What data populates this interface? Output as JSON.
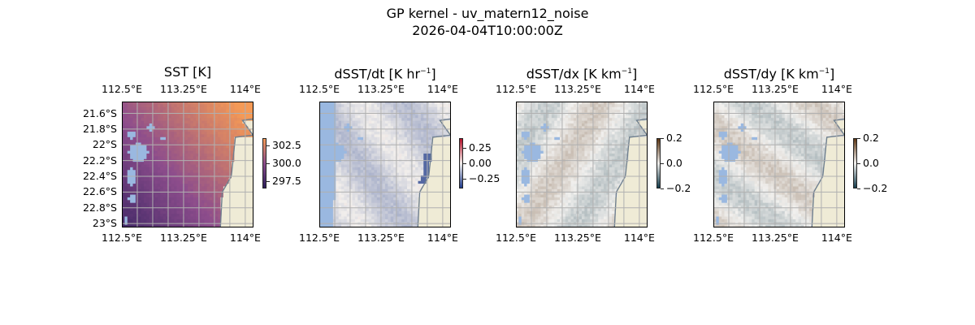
{
  "figure": {
    "title_line1": "GP kernel - uv_matern12_noise",
    "title_line2": "2026-04-04T10:00:00Z"
  },
  "panels": [
    {
      "id": "sst",
      "title_text": "SST [K]",
      "title_unit_exp": "",
      "title_suffix": "",
      "colormap": "thermal",
      "colors": {
        "low": "#2c1e5c",
        "mid": "#8d4d8c",
        "high": "#f59a56"
      },
      "colorbar": {
        "range": [
          296.5,
          303.5
        ],
        "ticks": [
          {
            "v": 302.5,
            "label": "302.5"
          },
          {
            "v": 300.0,
            "label": "300.0"
          },
          {
            "v": 297.5,
            "label": "297.5"
          }
        ]
      },
      "show_lat_labels": true
    },
    {
      "id": "dsst_dt",
      "title_text": "dSST/dt [K hr",
      "title_unit_exp": "−1",
      "title_suffix": "]",
      "colormap": "balance",
      "colors": {
        "low": "#1f3b8a",
        "mid": "#f2efec",
        "high": "#b3112a"
      },
      "colorbar": {
        "range": [
          -0.4,
          0.4
        ],
        "ticks": [
          {
            "v": 0.25,
            "label": "0.25"
          },
          {
            "v": 0.0,
            "label": "0.00"
          },
          {
            "v": -0.25,
            "label": "−0.25"
          }
        ]
      },
      "show_lat_labels": false
    },
    {
      "id": "dsst_dx",
      "title_text": "dSST/dx [K km",
      "title_unit_exp": "−1",
      "title_suffix": "]",
      "colormap": "diff",
      "colors": {
        "low": "#123a4a",
        "mid": "#f1f0ee",
        "high": "#5a3412"
      },
      "colorbar": {
        "range": [
          -0.2,
          0.2
        ],
        "ticks": [
          {
            "v": 0.2,
            "label": "0.2"
          },
          {
            "v": 0.0,
            "label": "0.0"
          },
          {
            "v": -0.2,
            "label": "−0.2"
          }
        ]
      },
      "show_lat_labels": false
    },
    {
      "id": "dsst_dy",
      "title_text": "dSST/dy [K km",
      "title_unit_exp": "−1",
      "title_suffix": "]",
      "colormap": "diff",
      "colors": {
        "low": "#123a4a",
        "mid": "#f1f0ee",
        "high": "#5a3412"
      },
      "colorbar": {
        "range": [
          -0.2,
          0.2
        ],
        "ticks": [
          {
            "v": 0.2,
            "label": "0.2"
          },
          {
            "v": 0.0,
            "label": "0.0"
          },
          {
            "v": -0.2,
            "label": "−0.2"
          }
        ]
      },
      "show_lat_labels": false
    }
  ],
  "map": {
    "lon_ticks": [
      "112.5°E",
      "113.25°E",
      "114°E"
    ],
    "lat_ticks": [
      "21.6°S",
      "21.8°S",
      "22°S",
      "22.2°S",
      "22.4°S",
      "22.6°S",
      "22.8°S",
      "23°S"
    ],
    "lon_range": [
      112.5,
      114.1
    ],
    "lat_range": [
      -23.05,
      -21.45
    ],
    "land_color": "#efebd6",
    "mask_color": "#9ab8e0",
    "grid_color": "#b0b0b0"
  },
  "chart_data": [
    {
      "type": "heatmap",
      "title": "SST [K]",
      "xlabel": "",
      "ylabel": "",
      "xlim": [
        112.5,
        114.1
      ],
      "ylim": [
        -23.05,
        -21.45
      ],
      "colorbar_range": [
        296.5,
        303.5
      ],
      "colorbar_ticks": [
        302.5,
        300.0,
        297.5
      ],
      "grid": true
    },
    {
      "type": "heatmap",
      "title": "dSST/dt [K hr^-1]",
      "xlabel": "",
      "ylabel": "",
      "xlim": [
        112.5,
        114.1
      ],
      "ylim": [
        -23.05,
        -21.45
      ],
      "colorbar_range": [
        -0.4,
        0.4
      ],
      "colorbar_ticks": [
        0.25,
        0.0,
        -0.25
      ],
      "grid": true
    },
    {
      "type": "heatmap",
      "title": "dSST/dx [K km^-1]",
      "xlabel": "",
      "ylabel": "",
      "xlim": [
        112.5,
        114.1
      ],
      "ylim": [
        -23.05,
        -21.45
      ],
      "colorbar_range": [
        -0.2,
        0.2
      ],
      "colorbar_ticks": [
        0.2,
        0.0,
        -0.2
      ],
      "grid": true
    },
    {
      "type": "heatmap",
      "title": "dSST/dy [K km^-1]",
      "xlabel": "",
      "ylabel": "",
      "xlim": [
        112.5,
        114.1
      ],
      "ylim": [
        -23.05,
        -21.45
      ],
      "colorbar_range": [
        -0.2,
        0.2
      ],
      "colorbar_ticks": [
        0.2,
        0.0,
        -0.2
      ],
      "grid": true
    }
  ]
}
